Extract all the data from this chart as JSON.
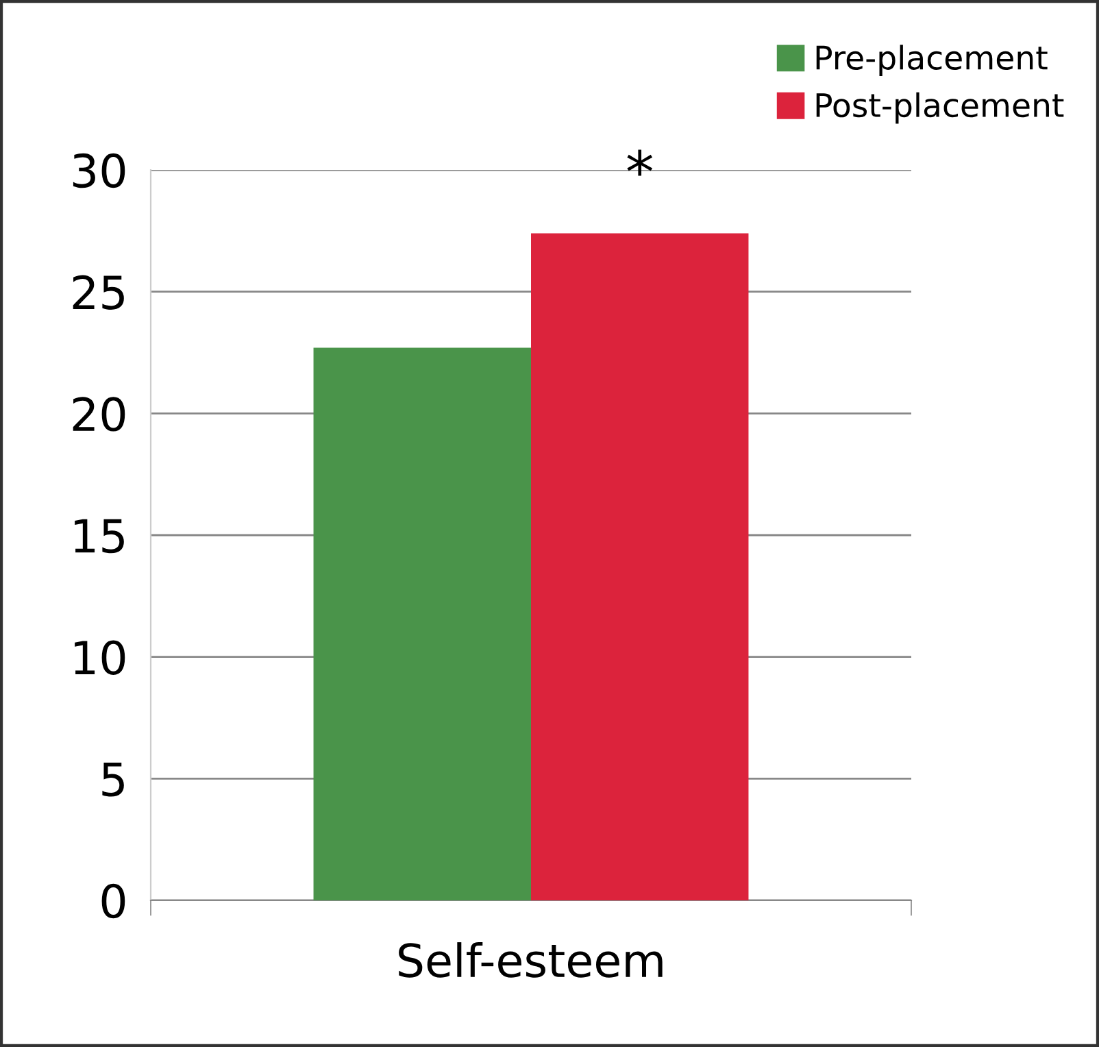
{
  "chart_data": {
    "type": "bar",
    "categories": [
      "Self-esteem"
    ],
    "series": [
      {
        "name": "Pre-placement",
        "color": "#4a944a",
        "values": [
          22.7
        ]
      },
      {
        "name": "Post-placement",
        "color": "#dc233c",
        "values": [
          27.4
        ]
      }
    ],
    "ylim": [
      0,
      30
    ],
    "yticks": [
      0,
      5,
      10,
      15,
      20,
      25,
      30
    ],
    "grid": "y",
    "legend": "top right",
    "annotations": [
      "*"
    ]
  }
}
